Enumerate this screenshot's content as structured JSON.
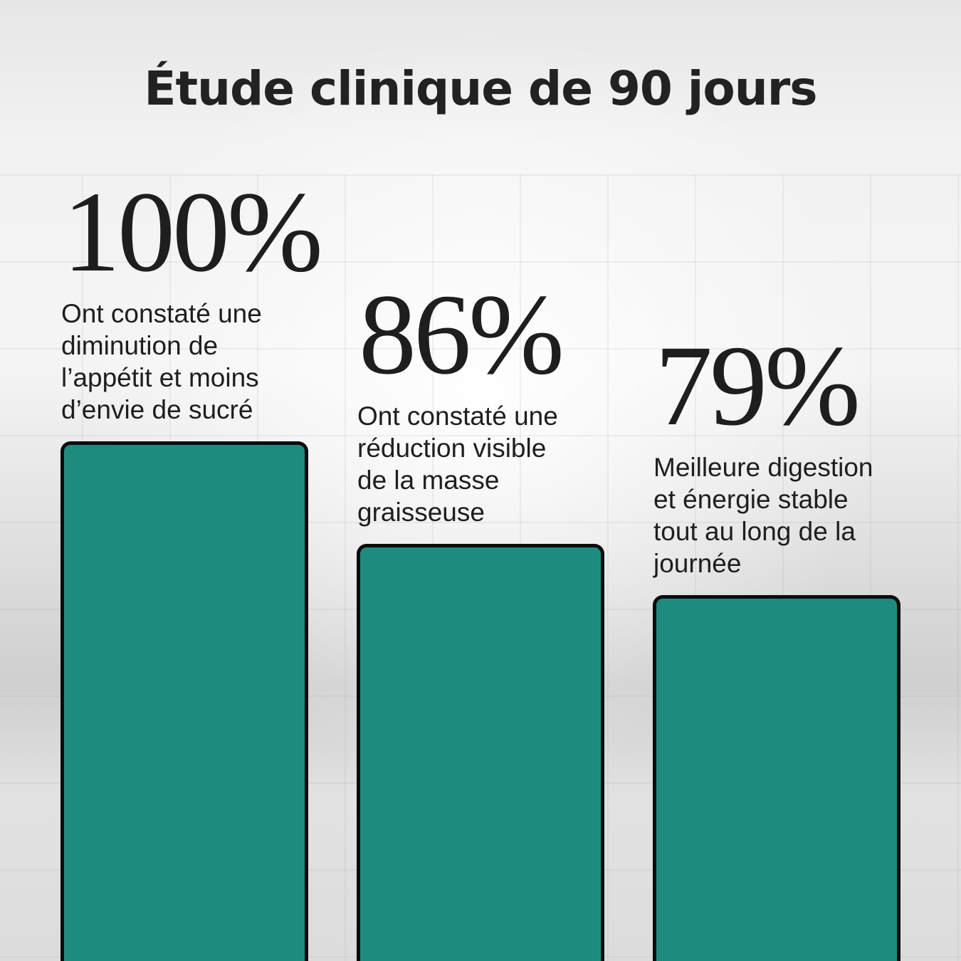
{
  "title": "Étude clinique de 90 jours",
  "colors": {
    "bar_fill": "#1f8b80",
    "bar_border": "#0c0c0c",
    "text": "#1e1e1e"
  },
  "chart_data": {
    "type": "bar",
    "title": "Étude clinique de 90 jours",
    "xlabel": "",
    "ylabel": "",
    "ylim": [
      0,
      100
    ],
    "grid": false,
    "categories": [
      "Ont constaté une diminution de l’appétit et moins d’envie de sucré",
      "Ont constaté une réduction visible de la masse graisseuse",
      "Meilleure digestion et énergie stable tout au long de la journée"
    ],
    "values": [
      100,
      86,
      79
    ],
    "value_labels": [
      "100%",
      "86%",
      "79%"
    ],
    "description_lines": [
      "Ont constaté une\ndiminution de\nl’appétit et moins\nd’envie de sucré",
      "Ont constaté une\nréduction visible\nde la masse\ngraisseuse",
      "Meilleure digestion\net énergie stable\ntout au long de la\njournée"
    ]
  }
}
